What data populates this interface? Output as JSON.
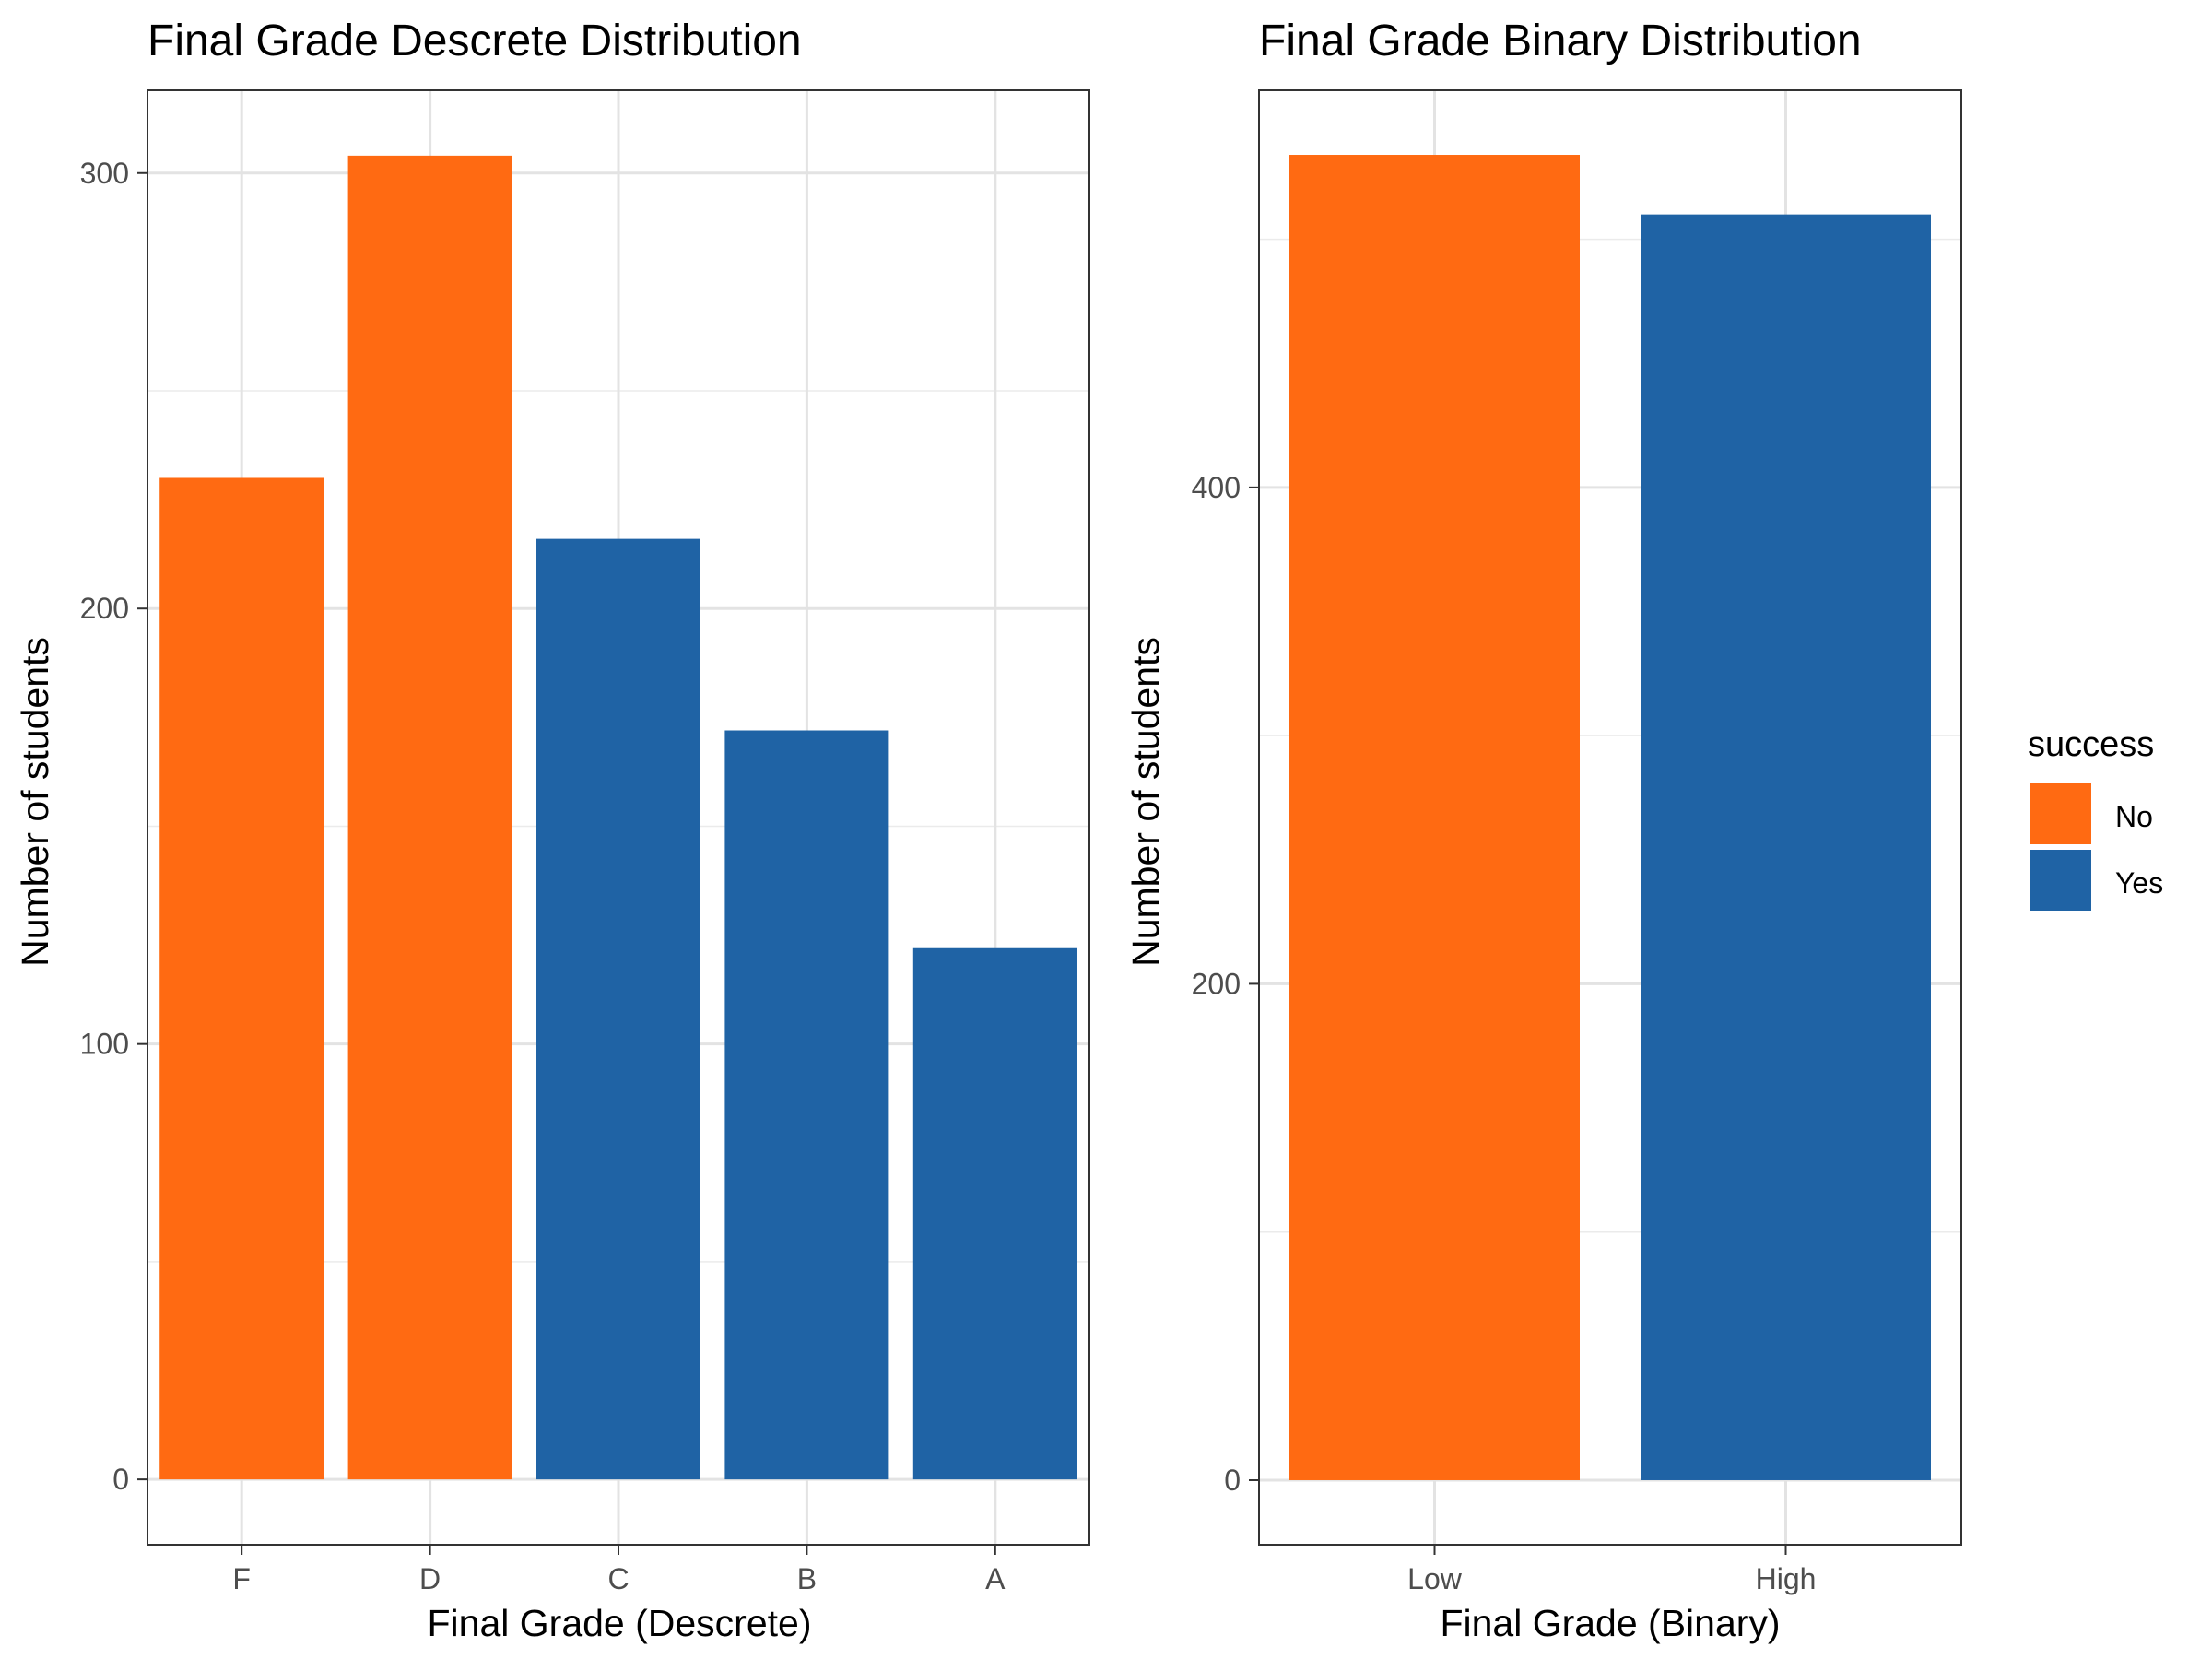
{
  "colors": {
    "No": "#ff6a12",
    "Yes": "#1f63a5"
  },
  "legend": {
    "title": "success",
    "entries": [
      {
        "label": "No",
        "color": "#ff6a12"
      },
      {
        "label": "Yes",
        "color": "#1f63a5"
      }
    ]
  },
  "chart_data": [
    {
      "type": "bar",
      "title": "Final Grade Descrete Distribution",
      "xlabel": "Final Grade (Descrete)",
      "ylabel": "Number of students",
      "categories": [
        "F",
        "D",
        "C",
        "B",
        "A"
      ],
      "values": [
        230,
        304,
        216,
        172,
        122
      ],
      "success": [
        "No",
        "No",
        "Yes",
        "Yes",
        "Yes"
      ],
      "ylim": [
        -15,
        319
      ],
      "yticks": [
        0,
        100,
        200,
        300
      ],
      "yminor": [
        50,
        150,
        250
      ],
      "grid": true
    },
    {
      "type": "bar",
      "title": "Final Grade Binary Distribution",
      "xlabel": "Final Grade (Binary)",
      "ylabel": "Number of students",
      "categories": [
        "Low",
        "High"
      ],
      "values": [
        534,
        510
      ],
      "success": [
        "No",
        "Yes"
      ],
      "ylim": [
        -26,
        560
      ],
      "yticks": [
        0,
        200,
        400
      ],
      "yminor": [
        100,
        300,
        500
      ],
      "grid": true
    }
  ]
}
